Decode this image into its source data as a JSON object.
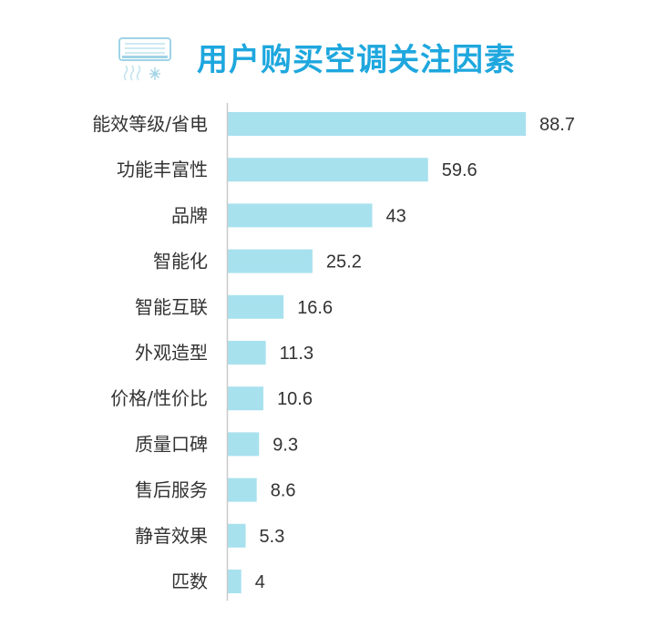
{
  "chart_data": {
    "type": "bar",
    "orientation": "horizontal",
    "title": "用户购买空调关注因素",
    "categories": [
      "能效等级/省电",
      "功能丰富性",
      "品牌",
      "智能化",
      "智能互联",
      "外观造型",
      "价格/性价比",
      "质量口碑",
      "售后服务",
      "静音效果",
      "匹数"
    ],
    "values": [
      88.7,
      59.6,
      43,
      25.2,
      16.6,
      11.3,
      10.6,
      9.3,
      8.6,
      5.3,
      4
    ],
    "value_labels": [
      "88.7",
      "59.6",
      "43",
      "25.2",
      "16.6",
      "11.3",
      "10.6",
      "9.3",
      "8.6",
      "5.3",
      "4"
    ],
    "xlim": [
      0,
      88.7
    ],
    "grid": false,
    "legend": "none",
    "bar_color": "#a8e1ee",
    "axis_color": "#c9c9c9",
    "title_color": "#1ea7de",
    "label_color": "#333333"
  },
  "header": {
    "icon": "air-conditioner-icon"
  }
}
